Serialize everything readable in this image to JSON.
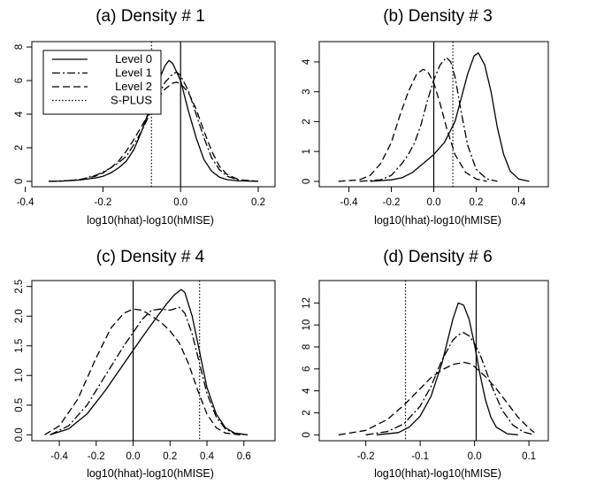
{
  "chart_data": [
    {
      "type": "line",
      "title": "(a) Density # 1",
      "xlabel": "log10(hhat)-log10(hMISE)",
      "ylabel": "",
      "xlim": [
        -0.36,
        0.22
      ],
      "ylim": [
        0,
        8
      ],
      "xticks": [
        -0.4,
        -0.2,
        0.0,
        0.2
      ],
      "yticks": [
        0,
        2,
        4,
        6,
        8
      ],
      "grid": false,
      "legend": {
        "position": "top-left",
        "entries": [
          {
            "label": "Level 0",
            "style": "solid"
          },
          {
            "label": "Level 1",
            "style": "dashdot"
          },
          {
            "label": "Level 2",
            "style": "dashed"
          },
          {
            "label": "S-PLUS",
            "style": "dotted"
          }
        ]
      },
      "vlines": [
        {
          "x": -0.075,
          "style": "dotted"
        },
        {
          "x": 0.0,
          "style": "solid"
        }
      ],
      "series": [
        {
          "style": "solid",
          "x": [
            -0.34,
            -0.3,
            -0.26,
            -0.22,
            -0.2,
            -0.18,
            -0.16,
            -0.14,
            -0.12,
            -0.1,
            -0.08,
            -0.06,
            -0.04,
            -0.03,
            -0.02,
            0.0,
            0.02,
            0.04,
            0.06,
            0.08,
            0.1,
            0.12,
            0.15,
            0.2
          ],
          "y": [
            0.0,
            0.02,
            0.08,
            0.2,
            0.3,
            0.5,
            0.8,
            1.2,
            1.9,
            3.0,
            4.3,
            5.8,
            6.9,
            7.2,
            7.0,
            6.0,
            4.2,
            2.6,
            1.3,
            0.6,
            0.25,
            0.1,
            0.03,
            0.0
          ]
        },
        {
          "style": "dashdot",
          "x": [
            -0.34,
            -0.3,
            -0.26,
            -0.22,
            -0.2,
            -0.18,
            -0.16,
            -0.14,
            -0.12,
            -0.1,
            -0.08,
            -0.06,
            -0.04,
            -0.02,
            -0.01,
            0.0,
            0.02,
            0.04,
            0.06,
            0.08,
            0.1,
            0.12,
            0.15,
            0.2
          ],
          "y": [
            0.0,
            0.03,
            0.1,
            0.35,
            0.55,
            0.8,
            1.1,
            1.5,
            2.2,
            3.0,
            4.0,
            5.0,
            5.9,
            6.4,
            6.5,
            6.3,
            5.4,
            4.0,
            2.6,
            1.4,
            0.7,
            0.3,
            0.08,
            0.0
          ]
        },
        {
          "style": "dashed",
          "x": [
            -0.34,
            -0.3,
            -0.26,
            -0.22,
            -0.2,
            -0.18,
            -0.16,
            -0.14,
            -0.12,
            -0.1,
            -0.08,
            -0.06,
            -0.04,
            -0.02,
            -0.01,
            0.0,
            0.02,
            0.04,
            0.06,
            0.08,
            0.1,
            0.12,
            0.15,
            0.2
          ],
          "y": [
            0.0,
            0.03,
            0.1,
            0.3,
            0.5,
            0.8,
            1.2,
            1.8,
            2.5,
            3.3,
            4.1,
            4.9,
            5.5,
            5.85,
            5.9,
            5.8,
            5.3,
            4.3,
            3.0,
            1.8,
            0.9,
            0.4,
            0.1,
            0.0
          ]
        }
      ]
    },
    {
      "type": "line",
      "title": "(b) Density # 3",
      "xlabel": "log10(hhat)-log10(hMISE)",
      "ylabel": "",
      "xlim": [
        -0.5,
        0.5
      ],
      "ylim": [
        0,
        4.5
      ],
      "xticks": [
        -0.4,
        -0.2,
        0.0,
        0.2,
        0.4
      ],
      "yticks": [
        0,
        1,
        2,
        3,
        4
      ],
      "grid": false,
      "vlines": [
        {
          "x": 0.0,
          "style": "solid"
        },
        {
          "x": 0.09,
          "style": "dotted"
        }
      ],
      "series": [
        {
          "style": "solid",
          "x": [
            -0.3,
            -0.2,
            -0.15,
            -0.1,
            -0.05,
            0.0,
            0.05,
            0.1,
            0.13,
            0.16,
            0.19,
            0.21,
            0.24,
            0.27,
            0.3,
            0.33,
            0.36,
            0.4,
            0.45
          ],
          "y": [
            0.0,
            0.05,
            0.12,
            0.3,
            0.6,
            0.9,
            1.3,
            2.0,
            2.8,
            3.6,
            4.2,
            4.3,
            3.9,
            3.0,
            1.8,
            0.9,
            0.35,
            0.08,
            0.0
          ]
        },
        {
          "style": "dashdot",
          "x": [
            -0.35,
            -0.25,
            -0.2,
            -0.15,
            -0.12,
            -0.09,
            -0.06,
            -0.03,
            0.0,
            0.03,
            0.06,
            0.08,
            0.1,
            0.13,
            0.16,
            0.2,
            0.25,
            0.3
          ],
          "y": [
            0.0,
            0.05,
            0.2,
            0.6,
            0.9,
            1.3,
            1.9,
            2.7,
            3.4,
            3.9,
            4.15,
            4.0,
            3.5,
            2.3,
            1.2,
            0.4,
            0.08,
            0.0
          ]
        },
        {
          "style": "dashed",
          "x": [
            -0.45,
            -0.35,
            -0.3,
            -0.25,
            -0.2,
            -0.16,
            -0.12,
            -0.08,
            -0.05,
            -0.03,
            0.0,
            0.03,
            0.06,
            0.1,
            0.15,
            0.2,
            0.25
          ],
          "y": [
            0.0,
            0.05,
            0.2,
            0.6,
            1.3,
            2.2,
            3.0,
            3.6,
            3.75,
            3.7,
            3.3,
            2.6,
            1.8,
            0.9,
            0.3,
            0.08,
            0.0
          ]
        }
      ]
    },
    {
      "type": "line",
      "title": "(c) Density # 4",
      "xlabel": "log10(hhat)-log10(hMISE)",
      "ylabel": "",
      "xlim": [
        -0.5,
        0.72
      ],
      "ylim": [
        0,
        2.5
      ],
      "xticks": [
        -0.4,
        -0.2,
        0.0,
        0.2,
        0.4,
        0.6
      ],
      "yticks": [
        0.0,
        0.5,
        1.0,
        1.5,
        2.0,
        2.5
      ],
      "grid": false,
      "vlines": [
        {
          "x": 0.0,
          "style": "solid"
        },
        {
          "x": 0.36,
          "style": "dotted"
        }
      ],
      "series": [
        {
          "style": "solid",
          "x": [
            -0.45,
            -0.35,
            -0.25,
            -0.15,
            -0.05,
            0.05,
            0.12,
            0.18,
            0.22,
            0.26,
            0.28,
            0.32,
            0.36,
            0.4,
            0.45,
            0.5,
            0.55,
            0.62
          ],
          "y": [
            0.0,
            0.1,
            0.35,
            0.75,
            1.2,
            1.65,
            1.95,
            2.2,
            2.35,
            2.45,
            2.4,
            2.0,
            1.4,
            0.8,
            0.35,
            0.12,
            0.03,
            0.0
          ]
        },
        {
          "style": "dashdot",
          "x": [
            -0.45,
            -0.35,
            -0.25,
            -0.15,
            -0.05,
            0.05,
            0.1,
            0.15,
            0.2,
            0.25,
            0.28,
            0.32,
            0.36,
            0.4,
            0.45,
            0.5,
            0.55,
            0.62
          ],
          "y": [
            0.0,
            0.15,
            0.5,
            1.0,
            1.5,
            1.95,
            2.1,
            2.12,
            2.1,
            2.15,
            2.05,
            1.7,
            1.2,
            0.7,
            0.3,
            0.1,
            0.02,
            0.0
          ]
        },
        {
          "style": "dashed",
          "x": [
            -0.48,
            -0.4,
            -0.3,
            -0.2,
            -0.12,
            -0.05,
            0.0,
            0.05,
            0.1,
            0.15,
            0.2,
            0.25,
            0.3,
            0.35,
            0.4,
            0.45,
            0.5,
            0.58
          ],
          "y": [
            0.0,
            0.15,
            0.6,
            1.3,
            1.8,
            2.05,
            2.12,
            2.1,
            2.0,
            1.9,
            1.75,
            1.55,
            1.2,
            0.75,
            0.35,
            0.12,
            0.03,
            0.0
          ]
        }
      ]
    },
    {
      "type": "line",
      "title": "(d) Density # 6",
      "xlabel": "log10(hhat)-log10(hMISE)",
      "ylabel": "",
      "xlim": [
        -0.27,
        0.12
      ],
      "ylim": [
        0,
        13.5
      ],
      "xticks": [
        -0.2,
        -0.1,
        0.0,
        0.1
      ],
      "yticks": [
        0,
        2,
        4,
        6,
        8,
        10,
        12
      ],
      "grid": false,
      "vlines": [
        {
          "x": -0.127,
          "style": "dotted"
        },
        {
          "x": 0.003,
          "style": "solid"
        }
      ],
      "series": [
        {
          "style": "solid",
          "x": [
            -0.18,
            -0.14,
            -0.12,
            -0.1,
            -0.08,
            -0.06,
            -0.05,
            -0.04,
            -0.03,
            -0.02,
            -0.01,
            0.0,
            0.01,
            0.02,
            0.03,
            0.04,
            0.06,
            0.08
          ],
          "y": [
            0.0,
            0.2,
            0.7,
            1.7,
            3.5,
            6.5,
            8.5,
            10.5,
            12.0,
            11.8,
            10.5,
            8.2,
            5.5,
            3.2,
            1.6,
            0.7,
            0.1,
            0.0
          ]
        },
        {
          "style": "dashdot",
          "x": [
            -0.2,
            -0.16,
            -0.13,
            -0.1,
            -0.08,
            -0.06,
            -0.04,
            -0.03,
            -0.02,
            -0.01,
            0.0,
            0.01,
            0.02,
            0.03,
            0.05,
            0.07,
            0.09,
            0.11
          ],
          "y": [
            0.0,
            0.3,
            1.0,
            2.6,
            4.4,
            6.8,
            8.6,
            9.1,
            9.3,
            9.0,
            8.3,
            7.3,
            6.0,
            4.6,
            2.3,
            0.9,
            0.25,
            0.0
          ]
        },
        {
          "style": "dashed",
          "x": [
            -0.25,
            -0.2,
            -0.16,
            -0.13,
            -0.1,
            -0.08,
            -0.06,
            -0.04,
            -0.02,
            -0.01,
            0.0,
            0.02,
            0.04,
            0.06,
            0.08,
            0.1,
            0.11
          ],
          "y": [
            0.0,
            0.4,
            1.4,
            2.7,
            4.2,
            5.2,
            5.9,
            6.4,
            6.6,
            6.5,
            6.2,
            5.3,
            4.2,
            2.9,
            1.6,
            0.6,
            0.2
          ]
        }
      ]
    }
  ]
}
